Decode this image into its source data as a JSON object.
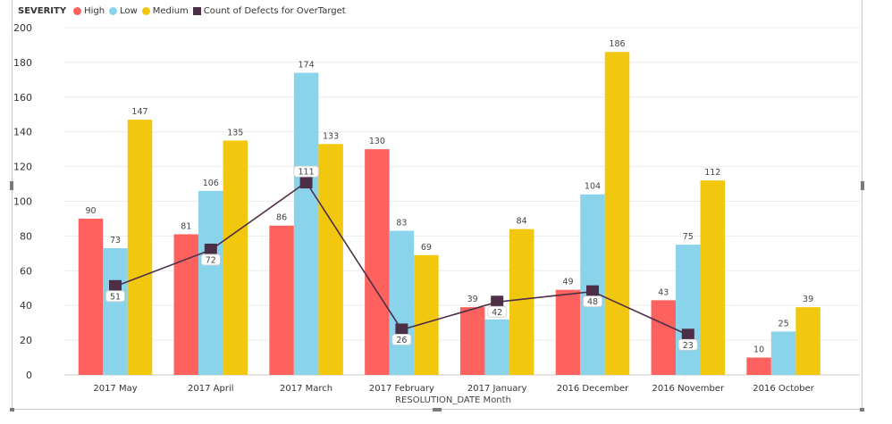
{
  "chart_data": {
    "type": "bar",
    "legend_title": "SEVERITY",
    "legend_position": "top-left",
    "categories": [
      "2017 May",
      "2017 April",
      "2017 March",
      "2017 February",
      "2017 January",
      "2016 December",
      "2016 November",
      "2016 October"
    ],
    "series": [
      {
        "name": "High",
        "color": "#fd625e",
        "values": [
          90,
          81,
          86,
          130,
          39,
          49,
          43,
          10
        ]
      },
      {
        "name": "Low",
        "color": "#8ad4eb",
        "values": [
          73,
          106,
          174,
          83,
          32,
          104,
          75,
          25
        ]
      },
      {
        "name": "Medium",
        "color": "#f2c80f",
        "values": [
          147,
          135,
          133,
          69,
          84,
          186,
          112,
          39
        ]
      }
    ],
    "line_series": {
      "name": "Count of Defects for OverTarget",
      "color": "#4d2e47",
      "values": [
        51,
        72,
        111,
        26,
        42,
        48,
        23,
        null
      ]
    },
    "xlabel": "RESOLUTION_DATE Month",
    "ylabel": "",
    "ylim": [
      0,
      200
    ],
    "yticks": [
      0,
      20,
      40,
      60,
      80,
      100,
      120,
      140,
      160,
      180,
      200
    ],
    "grid": true
  }
}
